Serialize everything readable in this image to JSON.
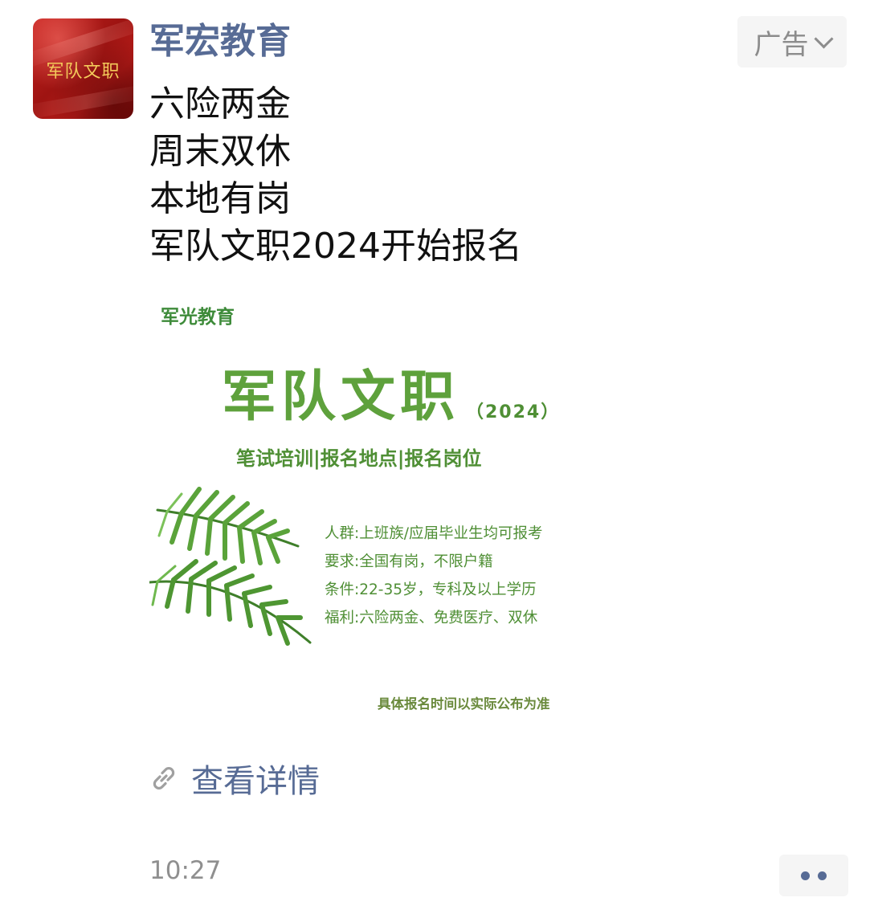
{
  "avatar": {
    "text": "军队文职"
  },
  "header": {
    "account_name": "军宏教育",
    "ad_label": "广告"
  },
  "ad_copy": {
    "lines": [
      "六险两金",
      "周末双休",
      "本地有岗",
      "军队文职2024开始报名"
    ]
  },
  "ad_image": {
    "brand": "军光教育",
    "title": "军队文职",
    "year": "（2024）",
    "subtitle": "笔试培训|报名地点|报名岗位",
    "details": [
      "人群:上班族/应届毕业生均可报考",
      "要求:全国有岗，不限户籍",
      "条件:22-35岁，专科及以上学历",
      "福利:六险两金、免费医疗、双休"
    ],
    "footnote": "具体报名时间以实际公布为准"
  },
  "link": {
    "label": "查看详情"
  },
  "footer": {
    "time": "10:27"
  },
  "colors": {
    "link_blue": "#576b95",
    "poster_green": "#5ea13c",
    "avatar_red": "#b51b18"
  },
  "icons": {
    "link": "link-icon",
    "ad_dropdown": "chevron-down-icon",
    "more": "more-dots-icon"
  }
}
